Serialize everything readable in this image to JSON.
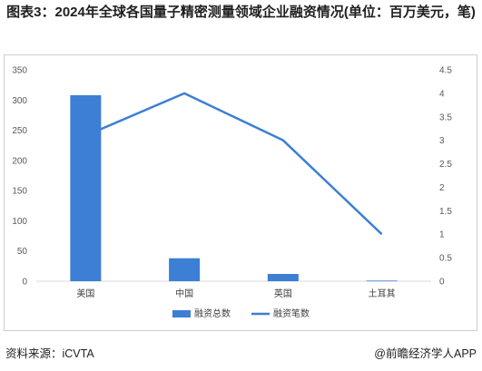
{
  "header": {
    "title": "图表3：2024年全球各国量子精密测量领域企业融资情况(单位：百万美元，笔)"
  },
  "footer": {
    "source": "资料来源：iCVTA",
    "brand": "@前瞻经济学人APP"
  },
  "colors": {
    "bar": "#3c7fd4",
    "line": "#3c7fd4",
    "axis": "#d9d9d9"
  },
  "chart_data": {
    "type": "bar",
    "categories": [
      "美国",
      "中国",
      "英国",
      "土耳其"
    ],
    "series": [
      {
        "name": "融资总数",
        "type": "bar",
        "axis": "left",
        "values": [
          308,
          38,
          12,
          1
        ]
      },
      {
        "name": "融资笔数",
        "type": "line",
        "axis": "right",
        "values": [
          3.1,
          4,
          3,
          1
        ]
      }
    ],
    "y_left": {
      "min": 0,
      "max": 350,
      "ticks": [
        "0",
        "50",
        "100",
        "150",
        "200",
        "250",
        "300",
        "350"
      ]
    },
    "y_right": {
      "min": 0,
      "max": 4.5,
      "ticks": [
        "0",
        "0.5",
        "1",
        "1.5",
        "2",
        "2.5",
        "3",
        "3.5",
        "4",
        "4.5"
      ]
    },
    "grid": false,
    "legend": "bottom"
  }
}
